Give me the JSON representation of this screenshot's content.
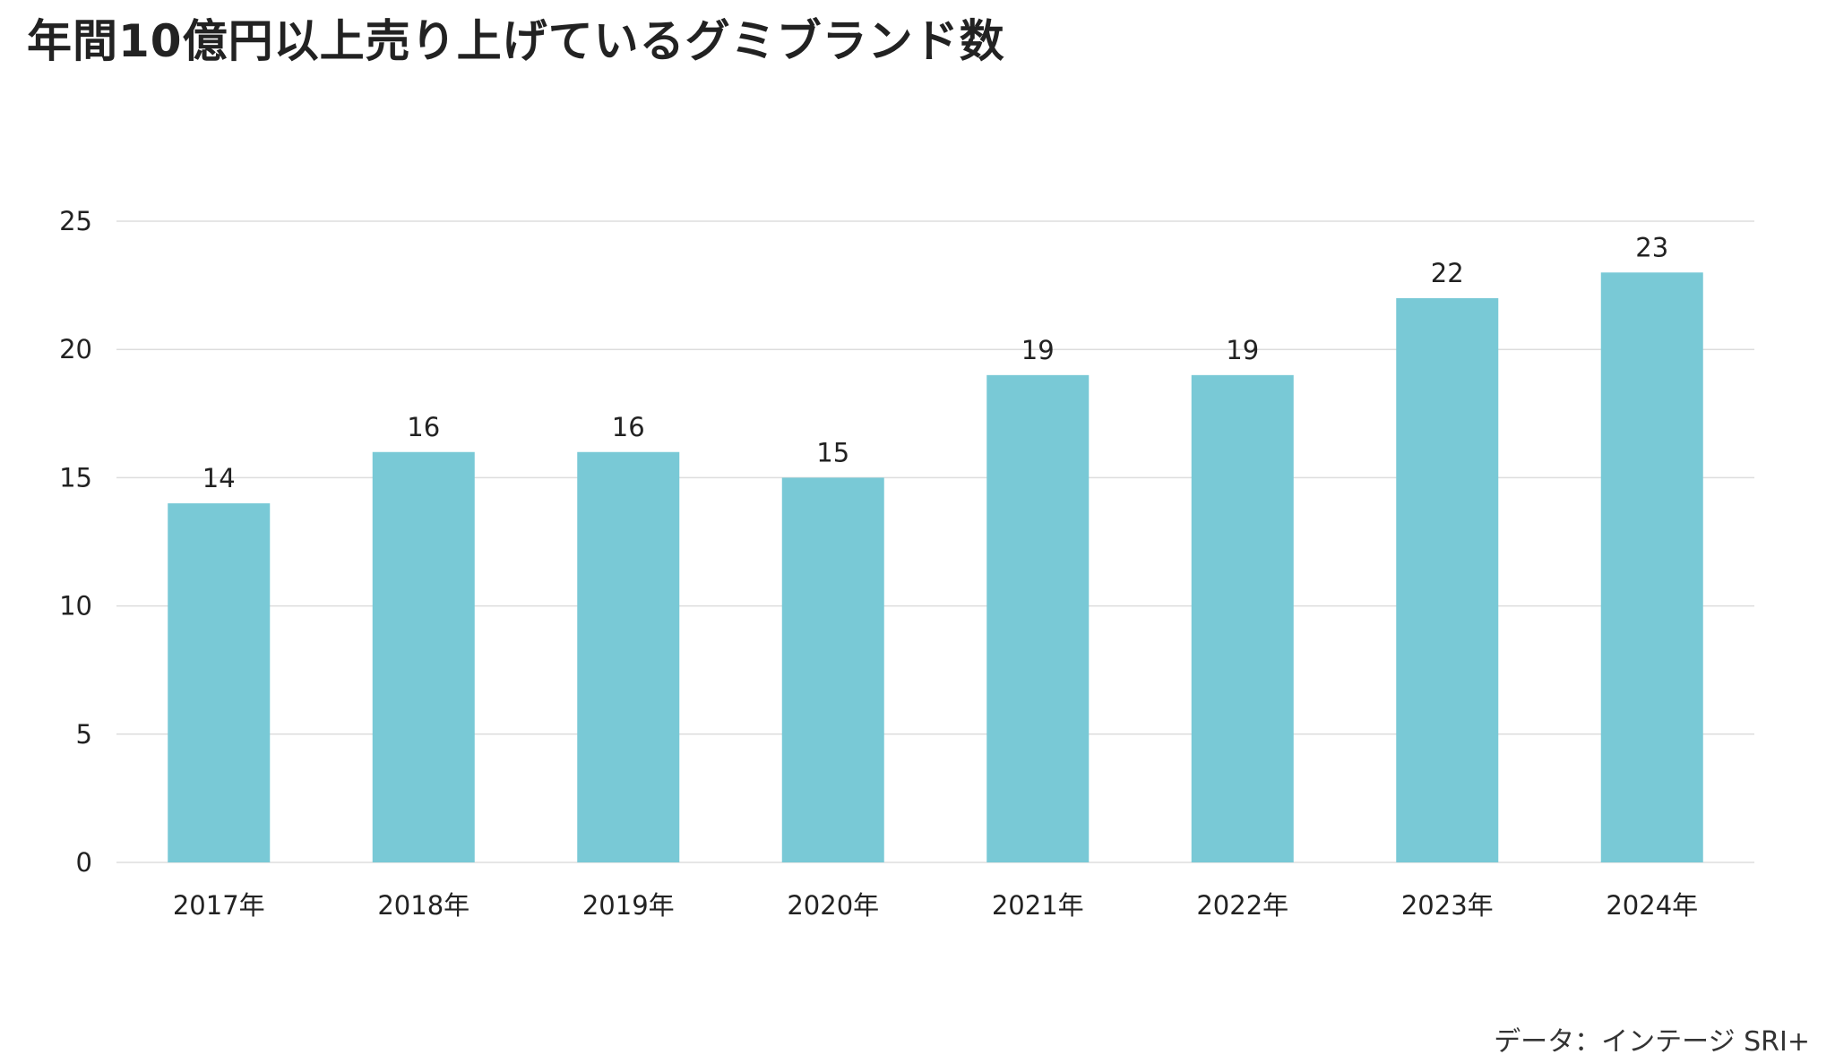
{
  "chart_data": {
    "type": "bar",
    "title": "年間10億円以上売り上げているグミブランド数",
    "categories": [
      "2017年",
      "2018年",
      "2019年",
      "2020年",
      "2021年",
      "2022年",
      "2023年",
      "2024年"
    ],
    "values": [
      14,
      16,
      16,
      15,
      19,
      19,
      22,
      23
    ],
    "data_labels": [
      "14",
      "16",
      "16",
      "15",
      "19",
      "19",
      "22",
      "23"
    ],
    "y_ticks": [
      0,
      5,
      10,
      15,
      20,
      25
    ],
    "y_tick_labels": [
      "0",
      "5",
      "10",
      "15",
      "20",
      "25"
    ],
    "ylim": [
      0,
      25
    ],
    "grid": true,
    "legend": "none",
    "bar_color": "#79c9d6",
    "grid_color": "#dddddd",
    "text_color": "#222222"
  },
  "source": "データ：インテージ SRI+"
}
